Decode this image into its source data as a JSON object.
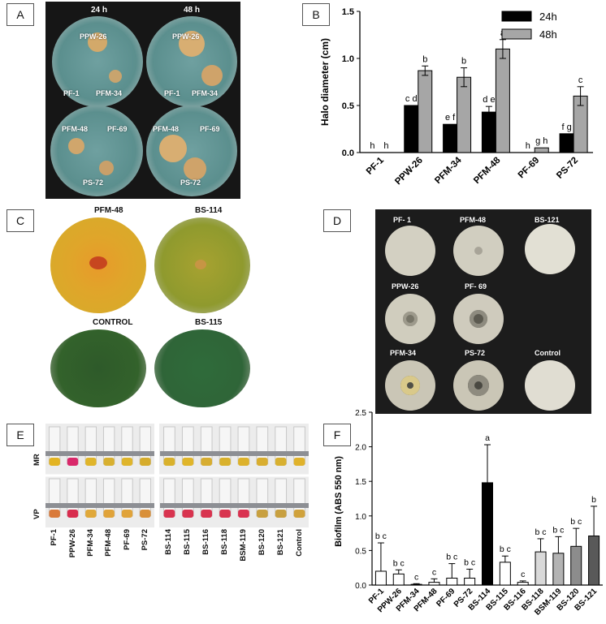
{
  "panels": {
    "A": {
      "letter": "A",
      "time_left": "24 h",
      "time_right": "48 h",
      "top_plate_labels": [
        "PPW-26",
        "PF-1",
        "PFM-34"
      ],
      "bottom_plate_labels": [
        "PFM-48",
        "PF-69",
        "PS-72"
      ]
    },
    "B": {
      "letter": "B"
    },
    "C": {
      "letter": "C",
      "labels": [
        "PFM-48",
        "BS-114",
        "CONTROL",
        "BS-115"
      ]
    },
    "D": {
      "letter": "D",
      "labels": [
        "PF- 1",
        "PFM-48",
        "BS-121",
        "PPW-26",
        "PF- 69",
        "PFM-34",
        "PS-72",
        "Control"
      ]
    },
    "E": {
      "letter": "E",
      "row_labels": [
        "MR",
        "VP"
      ],
      "tube_labels_left": [
        "PF-1",
        "PPW-26",
        "PFM-34",
        "PFM-48",
        "PF-69",
        "PS-72"
      ],
      "tube_labels_right": [
        "BS-114",
        "BS-115",
        "BS-116",
        "BS-118",
        "BSM-119",
        "BS-120",
        "BS-121",
        "Control"
      ]
    },
    "F": {
      "letter": "F"
    }
  },
  "chart_data": [
    {
      "type": "bar",
      "panel": "B",
      "categories": [
        "PF-1",
        "PPW-26",
        "PFM-34",
        "PFM-48",
        "PF-69",
        "PS-72"
      ],
      "series": [
        {
          "name": "24h",
          "color": "#000000",
          "values": [
            0,
            0.5,
            0.3,
            0.43,
            0,
            0.2
          ],
          "errors": [
            0,
            0,
            0,
            0.06,
            0,
            0
          ],
          "letters": [
            "h",
            "c d",
            "e f",
            "d e",
            "h",
            "f g"
          ]
        },
        {
          "name": "48h",
          "color": "#a6a6a6",
          "values": [
            0,
            0.87,
            0.8,
            1.1,
            0.05,
            0.6
          ],
          "errors": [
            0,
            0.05,
            0.1,
            0.1,
            0,
            0.1
          ],
          "letters": [
            "h",
            "b",
            "b",
            "a",
            "g h",
            "c"
          ]
        }
      ],
      "ylabel": "Halo diameter (cm)",
      "ylim": [
        0,
        1.5
      ],
      "yticks": [
        "0.0",
        "0.5",
        "1.0",
        "1.5"
      ],
      "legend": "top-right"
    },
    {
      "type": "bar",
      "panel": "F",
      "categories": [
        "PF-1",
        "PPW-26",
        "PFM-34",
        "PFM-48",
        "PF-69",
        "PS-72",
        "BS-114",
        "BS-115",
        "BS-116",
        "BS-118",
        "BSM-119",
        "BS-120",
        "BS-121"
      ],
      "values": [
        0.2,
        0.16,
        0.01,
        0.04,
        0.1,
        0.1,
        1.48,
        0.33,
        0.04,
        0.48,
        0.46,
        0.56,
        0.71
      ],
      "errors": [
        0.41,
        0.06,
        0.01,
        0.05,
        0.21,
        0.13,
        0.55,
        0.09,
        0.02,
        0.19,
        0.24,
        0.26,
        0.43
      ],
      "colors": [
        "#ffffff",
        "#ffffff",
        "#ffffff",
        "#ffffff",
        "#ffffff",
        "#ffffff",
        "#000000",
        "#ffffff",
        "#ffffff",
        "#d9d9d9",
        "#b3b3b3",
        "#8c8c8c",
        "#595959"
      ],
      "letters": [
        "b c",
        "b c",
        "c",
        "c",
        "b c",
        "b c",
        "a",
        "b c",
        "c",
        "b c",
        "b c",
        "b c",
        "b"
      ],
      "ylabel": "Biofilm (ABS 550 nm)",
      "ylim": [
        0,
        2.5
      ],
      "yticks": [
        "0.0",
        "0.5",
        "1.0",
        "1.5",
        "2.0",
        "2.5"
      ]
    }
  ]
}
